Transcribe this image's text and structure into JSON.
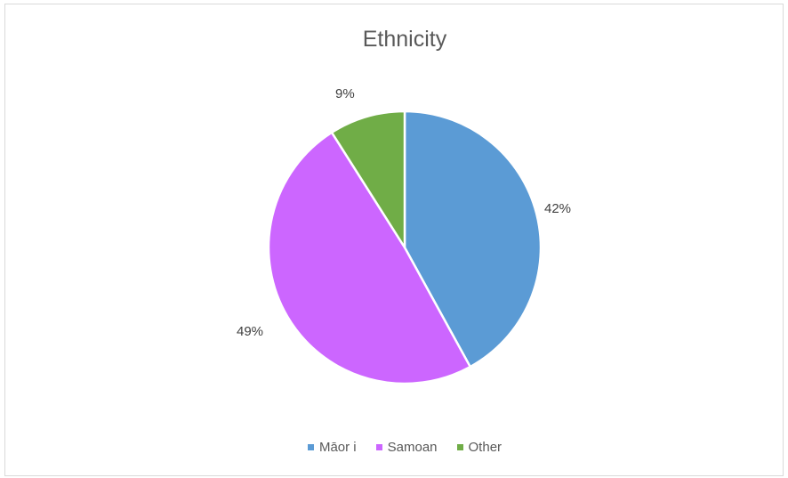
{
  "chart_data": {
    "type": "pie",
    "title": "Ethnicity",
    "categories": [
      "Māor i",
      "Samoan",
      "Other"
    ],
    "values": [
      42,
      49,
      9
    ],
    "labels": [
      "42%",
      "49%",
      "9%"
    ],
    "colors": [
      "#5b9bd5",
      "#cc66ff",
      "#70ad47"
    ],
    "legend_position": "bottom"
  }
}
